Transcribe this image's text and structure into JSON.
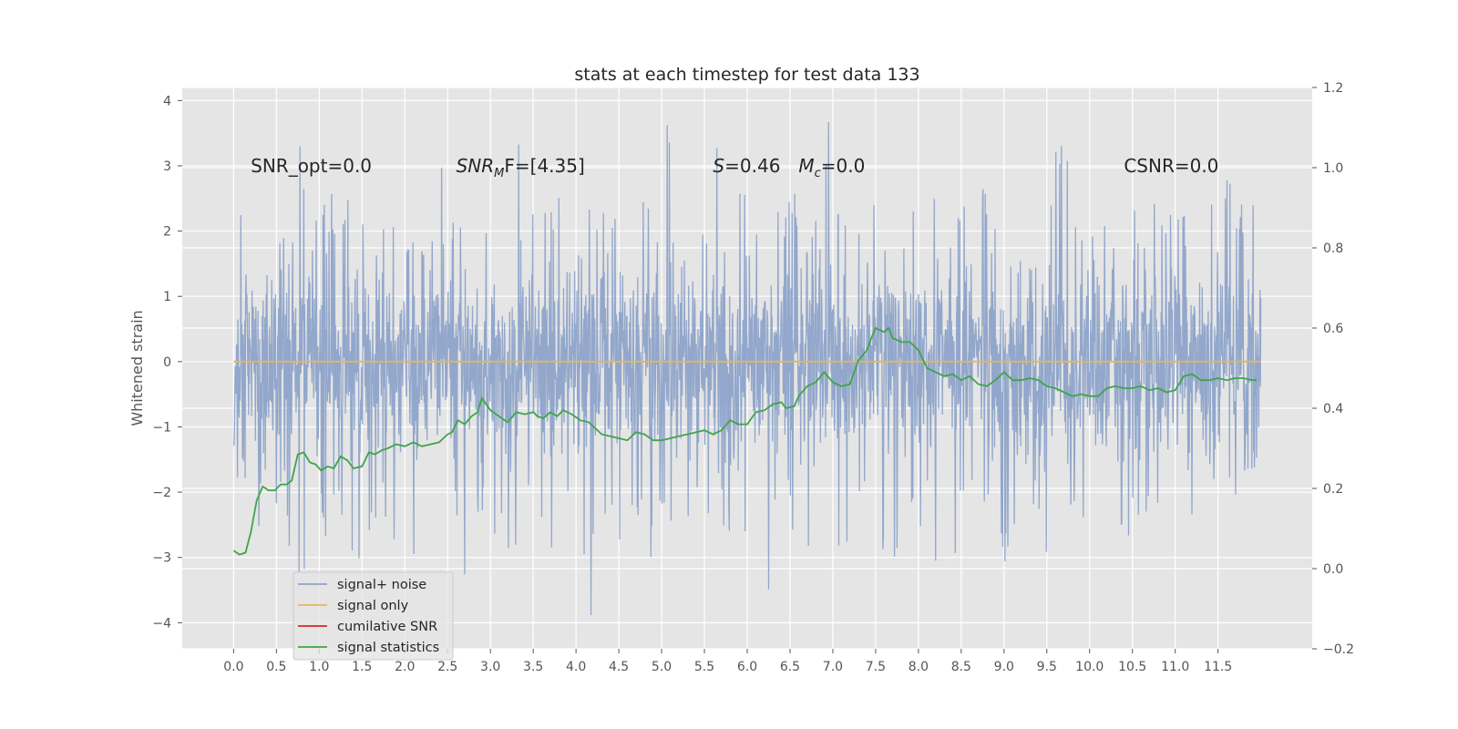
{
  "chart_data": {
    "type": "line",
    "title": "stats at each timestep for test data 133",
    "ylabel": "Whitened strain",
    "xlim": [
      -0.6,
      12.6
    ],
    "ylim": [
      -4.4,
      4.2
    ],
    "y2lim": [
      -0.2,
      1.2
    ],
    "x_ticks": [
      0.0,
      0.5,
      1.0,
      1.5,
      2.0,
      2.5,
      3.0,
      3.5,
      4.0,
      4.5,
      5.0,
      5.5,
      6.0,
      6.5,
      7.0,
      7.5,
      8.0,
      8.5,
      9.0,
      9.5,
      10.0,
      10.5,
      11.0,
      11.5
    ],
    "x_tick_labels": [
      "0.0",
      "0.5",
      "1.0",
      "1.5",
      "2.0",
      "2.5",
      "3.0",
      "3.5",
      "4.0",
      "4.5",
      "5.0",
      "5.5",
      "6.0",
      "6.5",
      "7.0",
      "7.5",
      "8.0",
      "8.5",
      "9.0",
      "9.5",
      "10.0",
      "10.5",
      "11.0",
      "11.5"
    ],
    "y_ticks": [
      -4,
      -3,
      -2,
      -1,
      0,
      1,
      2,
      3,
      4
    ],
    "y_tick_labels": [
      "−4",
      "−3",
      "−2",
      "−1",
      "0",
      "1",
      "2",
      "3",
      "4"
    ],
    "y2_ticks": [
      -0.2,
      0.0,
      0.2,
      0.4,
      0.6,
      0.8,
      1.0,
      1.2
    ],
    "y2_tick_labels": [
      "−0.2",
      "0.0",
      "0.2",
      "0.4",
      "0.6",
      "0.8",
      "1.0",
      "1.2"
    ],
    "grid": true,
    "legend_position": "lower-left",
    "annotations": [
      {
        "text": "SNR_opt=0.0",
        "x": 0.2,
        "y": 3.0
      },
      {
        "text": "SNR",
        "sub": "M",
        "tail": "F=[4.35]",
        "x": 2.6,
        "y": 3.0
      },
      {
        "text": "S",
        "tail": "=0.46",
        "x": 5.6,
        "y": 3.0
      },
      {
        "text": "M",
        "sub": "c",
        "tail": "=0.0",
        "x": 6.6,
        "y": 3.0
      },
      {
        "text": "CSNR=0.0",
        "x": 10.4,
        "y": 3.0
      }
    ],
    "series": [
      {
        "name": "signal+ noise",
        "color": "#8da3c9",
        "axis": "left",
        "x_start": 0.0,
        "x_end": 12.0,
        "envelope_upper": [
          2.4,
          2.0,
          2.6,
          3.4,
          2.2,
          3.3,
          2.4,
          2.6,
          2.5,
          3.3,
          2.7,
          2.3,
          2.8,
          2.2,
          2.5,
          2.4,
          3.4,
          2.3,
          2.4,
          2.6,
          3.2,
          2.6,
          3.8,
          2.3,
          2.5,
          2.8,
          3.7,
          2.4,
          2.5,
          2.6,
          2.7,
          2.5,
          3.0,
          3.8,
          2.4,
          2.5,
          2.6,
          3.3,
          2.4,
          2.6,
          2.9,
          3.4,
          2.5,
          2.6,
          3.2,
          2.4,
          3.9,
          2.3,
          2.5,
          2.6,
          3.0,
          2.5,
          2.6,
          3.2,
          2.5,
          2.4,
          2.6,
          2.7,
          2.9,
          2.5,
          2.3,
          3.2,
          2.6,
          2.5,
          3.9,
          2.5,
          2.4,
          2.7,
          2.5,
          2.6,
          2.4,
          3.1,
          2.6,
          2.8,
          2.7,
          2.8,
          2.5,
          2.9,
          2.6,
          2.7
        ],
        "envelope_lower": [
          -1.8,
          -3.1,
          -2.2,
          -2.4,
          -2.9,
          -3.6,
          -2.5,
          -2.7,
          -2.5,
          -3.3,
          -2.6,
          -2.4,
          -2.8,
          -2.5,
          -3.1,
          -2.6,
          -2.7,
          -2.6,
          -3.7,
          -2.6,
          -2.8,
          -3.0,
          -2.8,
          -2.5,
          -2.9,
          -3.1,
          -2.6,
          -3.9,
          -2.8,
          -2.7,
          -3.0,
          -2.6,
          -3.2,
          -2.7,
          -2.6,
          -2.8,
          -3.0,
          -2.5,
          -2.9,
          -3.4,
          -2.6,
          -4.1,
          -2.8,
          -2.6,
          -3.0,
          -2.8,
          -2.7,
          -2.9,
          -2.5,
          -2.8,
          -3.0,
          -3.1,
          -2.6,
          -2.7,
          -3.2,
          -3.0,
          -3.8,
          -2.6,
          -2.7,
          -2.9,
          -3.2,
          -2.6,
          -2.8,
          -3.6,
          -2.7,
          -2.6,
          -3.1,
          -2.9,
          -2.6,
          -3.0,
          -2.7,
          -2.6,
          -3.1,
          -2.6,
          -2.5,
          -2.9,
          -2.2,
          -2.0,
          -2.7,
          -1.7
        ]
      },
      {
        "name": "signal only",
        "color": "#e8b55a",
        "axis": "left",
        "x": [
          0.0,
          12.0
        ],
        "y": [
          0.0,
          0.0
        ]
      },
      {
        "name": "cumilative SNR",
        "color": "#d62728",
        "axis": "right",
        "x": [],
        "y": []
      },
      {
        "name": "signal statistics",
        "color": "#3fa44a",
        "axis": "right",
        "x": [
          0.0,
          0.07,
          0.14,
          0.2,
          0.27,
          0.34,
          0.41,
          0.48,
          0.55,
          0.62,
          0.68,
          0.75,
          0.82,
          0.89,
          0.96,
          1.02,
          1.1,
          1.17,
          1.25,
          1.33,
          1.4,
          1.5,
          1.58,
          1.65,
          1.73,
          1.8,
          1.9,
          2.0,
          2.1,
          2.2,
          2.3,
          2.4,
          2.5,
          2.55,
          2.62,
          2.7,
          2.78,
          2.85,
          2.9,
          3.0,
          3.1,
          3.2,
          3.3,
          3.4,
          3.5,
          3.55,
          3.62,
          3.7,
          3.78,
          3.85,
          3.95,
          4.05,
          4.15,
          4.3,
          4.4,
          4.5,
          4.6,
          4.7,
          4.8,
          4.9,
          5.0,
          5.1,
          5.2,
          5.3,
          5.4,
          5.5,
          5.6,
          5.7,
          5.8,
          5.9,
          6.0,
          6.1,
          6.2,
          6.3,
          6.4,
          6.45,
          6.55,
          6.6,
          6.7,
          6.8,
          6.9,
          7.0,
          7.1,
          7.2,
          7.3,
          7.4,
          7.45,
          7.5,
          7.6,
          7.65,
          7.7,
          7.8,
          7.9,
          8.0,
          8.1,
          8.2,
          8.3,
          8.4,
          8.5,
          8.6,
          8.7,
          8.8,
          8.9,
          9.0,
          9.1,
          9.2,
          9.3,
          9.4,
          9.5,
          9.6,
          9.7,
          9.8,
          9.9,
          10.0,
          10.1,
          10.2,
          10.3,
          10.4,
          10.5,
          10.6,
          10.7,
          10.8,
          10.9,
          11.0,
          11.1,
          11.2,
          11.3,
          11.4,
          11.5,
          11.6,
          11.7,
          11.8,
          11.9,
          11.95
        ],
        "y": [
          0.045,
          0.035,
          0.04,
          0.09,
          0.17,
          0.205,
          0.195,
          0.195,
          0.21,
          0.21,
          0.22,
          0.285,
          0.29,
          0.265,
          0.26,
          0.245,
          0.255,
          0.25,
          0.28,
          0.27,
          0.25,
          0.255,
          0.29,
          0.285,
          0.295,
          0.3,
          0.31,
          0.305,
          0.315,
          0.305,
          0.31,
          0.315,
          0.335,
          0.34,
          0.37,
          0.36,
          0.38,
          0.39,
          0.425,
          0.395,
          0.38,
          0.365,
          0.39,
          0.385,
          0.39,
          0.38,
          0.375,
          0.39,
          0.38,
          0.395,
          0.385,
          0.37,
          0.365,
          0.335,
          0.33,
          0.325,
          0.32,
          0.34,
          0.335,
          0.32,
          0.32,
          0.325,
          0.33,
          0.335,
          0.34,
          0.345,
          0.335,
          0.345,
          0.37,
          0.36,
          0.36,
          0.39,
          0.395,
          0.41,
          0.415,
          0.4,
          0.405,
          0.43,
          0.455,
          0.465,
          0.49,
          0.465,
          0.455,
          0.46,
          0.52,
          0.545,
          0.575,
          0.6,
          0.59,
          0.6,
          0.575,
          0.565,
          0.565,
          0.545,
          0.5,
          0.49,
          0.48,
          0.485,
          0.47,
          0.48,
          0.46,
          0.455,
          0.47,
          0.49,
          0.47,
          0.47,
          0.475,
          0.47,
          0.455,
          0.45,
          0.44,
          0.43,
          0.435,
          0.43,
          0.43,
          0.45,
          0.455,
          0.45,
          0.45,
          0.455,
          0.445,
          0.45,
          0.44,
          0.445,
          0.48,
          0.485,
          0.47,
          0.47,
          0.475,
          0.47,
          0.475,
          0.475,
          0.47,
          0.47
        ]
      }
    ]
  }
}
